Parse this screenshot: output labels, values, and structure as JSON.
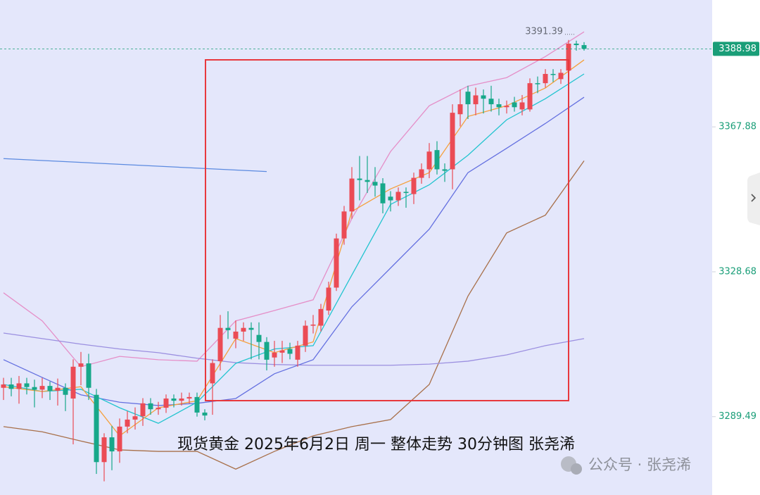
{
  "chart_data": {
    "type": "candlestick",
    "caption": "现货黄金 2025年6月2日 周一 整体走势 30分钟图 张尧浠",
    "watermark": "公众号 · 张尧浠",
    "ylim": [
      3268.3,
      3402.2
    ],
    "yticks": [
      3367.88,
      3328.68,
      3289.49
    ],
    "last_price": 3388.98,
    "high_label": 3391.39,
    "up_color": "#eb4b55",
    "down_color": "#17a88a",
    "candles": {
      "open": [
        3297.3,
        3298.2,
        3297.0,
        3298.5,
        3297.5,
        3296.8,
        3297.8,
        3296.5,
        3297.3,
        3294.4,
        3303.0,
        3303.9,
        3295.4,
        3277.2,
        3283.9,
        3280.1,
        3286.8,
        3288.7,
        3289.6,
        3293.1,
        3291.5,
        3291.9,
        3294.4,
        3293.8,
        3294.4,
        3294.8,
        3290.6,
        3298.5,
        3304.5,
        3313.5,
        3310.6,
        3312.5,
        3313.5,
        3311.6,
        3309.7,
        3305.5,
        3306.8,
        3307.8,
        3304.9,
        3308.7,
        3314.1,
        3314.1,
        3318.2,
        3324.4,
        3337.7,
        3345.0,
        3353.9,
        3353.5,
        3353.0,
        3352.6,
        3349.0,
        3348.0,
        3350.3,
        3349.7,
        3354.1,
        3356.4,
        3361.6,
        3356.4,
        3356.4,
        3371.3,
        3377.4,
        3374.0,
        3376.4,
        3375.5,
        3374.0,
        3373.2,
        3374.5,
        3372.6,
        3372.6,
        3379.7,
        3379.7,
        3382.2,
        3380.8,
        3383.1,
        3390.4,
        3390.0
      ],
      "high": [
        3300,
        3300,
        3300.5,
        3300,
        3299.5,
        3300,
        3299,
        3299.8,
        3298.5,
        3305,
        3307,
        3306.5,
        3297,
        3285,
        3287,
        3289,
        3291,
        3292,
        3294.5,
        3294.5,
        3293.5,
        3295.5,
        3295.5,
        3296,
        3296,
        3296,
        3291.5,
        3305,
        3317,
        3318,
        3315.5,
        3315,
        3315,
        3315,
        3311,
        3310,
        3310,
        3309.5,
        3310,
        3315.5,
        3317,
        3320,
        3326,
        3339,
        3346.5,
        3357,
        3360,
        3360,
        3357,
        3354,
        3350.5,
        3351.5,
        3351.5,
        3355.5,
        3358,
        3363.5,
        3364,
        3358,
        3374,
        3378,
        3379,
        3378.5,
        3378,
        3379,
        3375.5,
        3375,
        3376,
        3376.5,
        3381,
        3381.5,
        3383.5,
        3383.5,
        3383.5,
        3391.39,
        3391.2,
        3390.8
      ],
      "low": [
        3294,
        3295,
        3293,
        3295.5,
        3292,
        3294.5,
        3294,
        3292.5,
        3291,
        3282,
        3298,
        3294,
        3274,
        3272,
        3275,
        3277,
        3285,
        3286,
        3287,
        3290,
        3290,
        3290.5,
        3292,
        3292.5,
        3293,
        3289.5,
        3288.5,
        3290,
        3302,
        3310.5,
        3308,
        3310,
        3305,
        3305,
        3302,
        3303,
        3304,
        3305,
        3303,
        3307,
        3312,
        3312.5,
        3317,
        3323.5,
        3336,
        3343,
        3348,
        3350,
        3349,
        3344.5,
        3345,
        3346.5,
        3346,
        3347,
        3352.5,
        3354,
        3355,
        3353,
        3351,
        3368,
        3370,
        3371,
        3371.5,
        3372,
        3371,
        3371.5,
        3372,
        3371,
        3372,
        3377,
        3378.5,
        3380,
        3379.5,
        3382.5,
        3388.5,
        3388.5
      ],
      "close": [
        3298.2,
        3297.0,
        3298.5,
        3297.5,
        3296.8,
        3297.8,
        3296.5,
        3297.3,
        3295.4,
        3303.0,
        3303.9,
        3297.3,
        3277.2,
        3283.9,
        3280.1,
        3286.8,
        3288.7,
        3289.6,
        3293.1,
        3291.5,
        3291.9,
        3294.4,
        3293.8,
        3294.4,
        3294.8,
        3290.6,
        3289.8,
        3304.0,
        3313.5,
        3312.9,
        3312.5,
        3313.5,
        3313.0,
        3309.7,
        3304.9,
        3306.8,
        3307.4,
        3306.5,
        3308.7,
        3314.1,
        3314.4,
        3318.6,
        3324.4,
        3337.7,
        3345.0,
        3353.9,
        3353.5,
        3353.0,
        3352.0,
        3347.2,
        3348.0,
        3350.3,
        3350.0,
        3354.1,
        3356.4,
        3361.2,
        3356.4,
        3356.0,
        3371.7,
        3374.0,
        3374.0,
        3376.4,
        3375.5,
        3374.0,
        3373.2,
        3373.6,
        3373.2,
        3374.5,
        3379.7,
        3379.5,
        3382.2,
        3382.0,
        3382.5,
        3390.4,
        3390.0,
        3388.98
      ]
    },
    "overlays": [
      {
        "color": "#e58fc8",
        "x": [
          0,
          5,
          10,
          15,
          20,
          25,
          30,
          35,
          40,
          45,
          50,
          55,
          60,
          65,
          70,
          75
        ],
        "values": [
          3323.0,
          3315.4,
          3303.0,
          3305.8,
          3304.9,
          3304.5,
          3315.4,
          3318.2,
          3321.1,
          3343.1,
          3361.2,
          3373.6,
          3378.9,
          3381.2,
          3386.9,
          3393.6
        ]
      },
      {
        "color": "#a8704a",
        "x": [
          0,
          5,
          10,
          15,
          20,
          25,
          30,
          35,
          40,
          45,
          50,
          55,
          60,
          65,
          70,
          75
        ],
        "values": [
          3286.8,
          3285.4,
          3282.9,
          3280.5,
          3280.1,
          3280.1,
          3275.3,
          3280.1,
          3284.3,
          3286.8,
          3288.7,
          3298.2,
          3322.1,
          3339.2,
          3344.0,
          3358.7
        ]
      },
      {
        "color": "#9b8fe0",
        "x": [
          0,
          5,
          10,
          15,
          20,
          25,
          30,
          35,
          40,
          45,
          50,
          55,
          60,
          65,
          70,
          75
        ],
        "values": [
          3312.1,
          3310.6,
          3309.1,
          3307.8,
          3306.8,
          3305.3,
          3304.1,
          3303.6,
          3303.4,
          3303.4,
          3303.4,
          3303.7,
          3304.5,
          3306.2,
          3308.7,
          3310.6
        ]
      },
      {
        "color": "#6470e0",
        "x": [
          0,
          5,
          10,
          15,
          20,
          25,
          30,
          35,
          40,
          45,
          50,
          55,
          60,
          65,
          70,
          75
        ],
        "values": [
          3304.9,
          3300.1,
          3295.4,
          3293.4,
          3292.5,
          3293.1,
          3294.4,
          3301.1,
          3304.9,
          3319.2,
          3329.7,
          3340.2,
          3355.5,
          3362.1,
          3368.8,
          3375.9
        ]
      },
      {
        "color": "#22c4cf",
        "x": [
          0,
          5,
          10,
          15,
          20,
          25,
          30,
          35,
          40,
          45,
          50,
          55,
          60,
          65,
          70,
          75
        ],
        "values": [
          3298.2,
          3296.3,
          3296.9,
          3291.9,
          3287.7,
          3293.4,
          3303.9,
          3307.8,
          3308.7,
          3327.8,
          3346.9,
          3352.2,
          3360.2,
          3369.8,
          3375.5,
          3382.2
        ]
      },
      {
        "color": "#f5a03c",
        "x": [
          0,
          5,
          10,
          15,
          20,
          25,
          30,
          35,
          40,
          45,
          50,
          55,
          60,
          65,
          70,
          75
        ],
        "values": [
          3297.6,
          3296.3,
          3297.6,
          3284.3,
          3291.9,
          3293.8,
          3310.6,
          3306.8,
          3309.7,
          3345.0,
          3351.1,
          3355.5,
          3370.7,
          3373.6,
          3378.4,
          3386.0
        ]
      },
      {
        "color": "#5b8ae0",
        "x": [
          0,
          34
        ],
        "values": [
          3359.3,
          3355.8
        ]
      }
    ]
  }
}
